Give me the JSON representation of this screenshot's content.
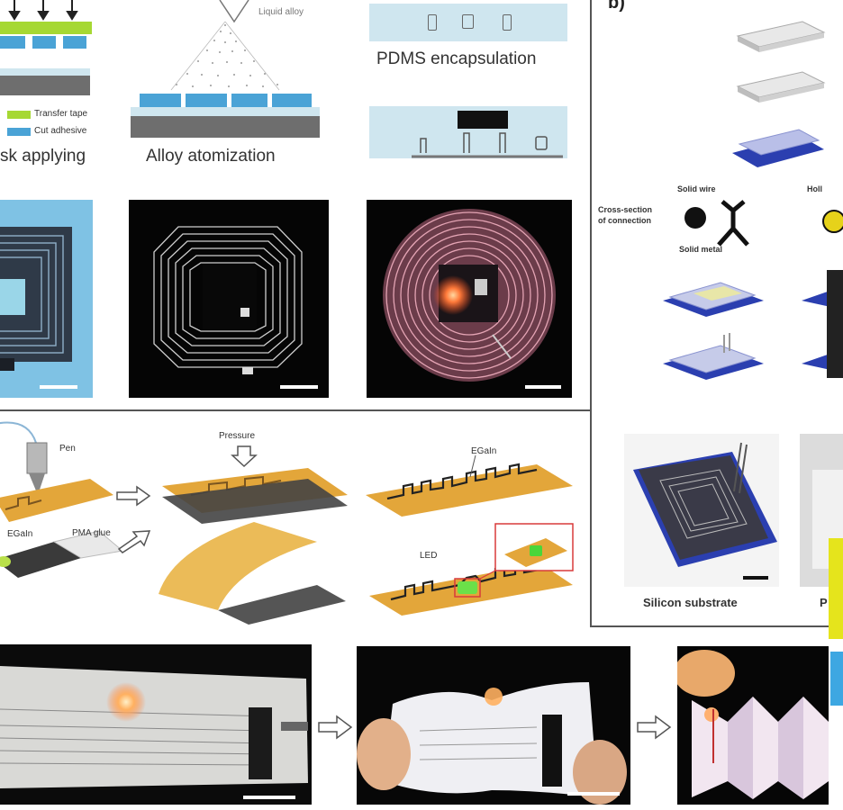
{
  "panel_a": {
    "legend_transfer_tape": "Transfer tape",
    "legend_cut_adhesive": "Cut adhesive",
    "step_mask": "sk applying",
    "liquid_alloy": "Liquid alloy",
    "step_atomization": "Alloy atomization",
    "step_pdms": "PDMS encapsulation"
  },
  "panel_b": {
    "label": "b)",
    "solid_wire": "Solid wire",
    "hollow": "Holl",
    "cross_section": "Cross-section\nof connection",
    "solid_metal": "Solid metal",
    "silicon_substrate": "Silicon substrate",
    "second_label": "P"
  },
  "panel_c": {
    "pen": "Pen",
    "pressure": "Pressure",
    "egain_top": "EGaIn",
    "egain_left": "EGaIn",
    "pma_glue": "PMA glue",
    "led": "LED"
  },
  "colors": {
    "green_tape": "#a6d833",
    "cyan_adhesive": "#4aa3d6",
    "substrate_grey": "#6e6e6e",
    "pdms_light": "#cfe6ef",
    "blue_substrate": "#2b3fb0",
    "orange_film": "#e3a63a"
  }
}
